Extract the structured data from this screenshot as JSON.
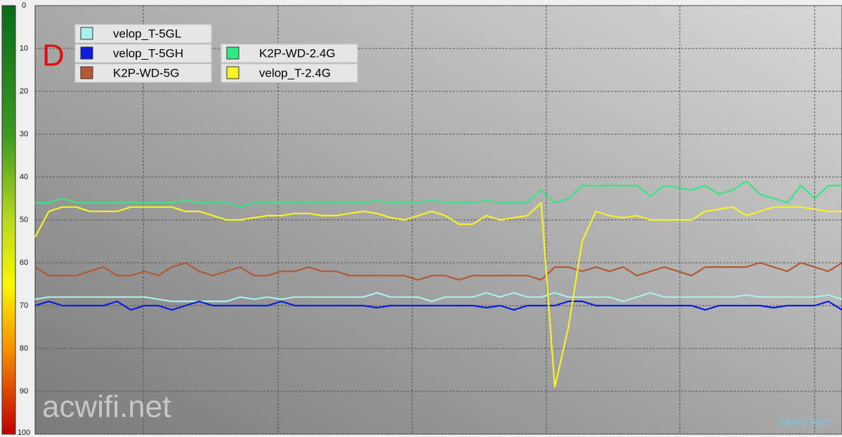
{
  "chart_data": {
    "type": "line",
    "ylim": [
      0,
      100
    ],
    "yticks": [
      0,
      10,
      20,
      30,
      40,
      50,
      60,
      70,
      80,
      90,
      100
    ],
    "y_inverted": true,
    "grid": true,
    "legend": "upper left",
    "annotations": {
      "panel": "D",
      "watermark": "acwifi.net",
      "corner_mark": "SMYZ.NET"
    },
    "series": [
      {
        "name": "velop_T-5GL",
        "color": "#a8f0ec",
        "values": [
          68.5,
          68,
          68,
          68,
          68,
          68,
          68,
          68,
          68,
          68.5,
          69,
          69,
          69,
          69,
          69,
          68,
          68.5,
          68,
          68.5,
          68,
          68,
          68,
          68,
          68,
          68,
          67,
          68,
          68,
          68,
          69,
          68,
          68,
          68,
          67,
          68,
          67,
          68,
          68,
          67,
          68,
          68,
          68,
          68,
          69,
          68,
          67,
          68,
          68,
          68,
          68,
          68,
          68,
          67.5,
          68,
          68,
          68,
          68,
          68,
          67.5,
          68.5
        ]
      },
      {
        "name": "velop_T-5GH",
        "color": "#0a1edc",
        "values": [
          70,
          69,
          70,
          70,
          70,
          70,
          69,
          71,
          70,
          70,
          71,
          70,
          69,
          70,
          70,
          70,
          70,
          70,
          69,
          70,
          70,
          70,
          70,
          70,
          70,
          70.5,
          70,
          70,
          70,
          70,
          70,
          70,
          70,
          70.5,
          70,
          71,
          70,
          70,
          70,
          69,
          69,
          70,
          70,
          70,
          70,
          70,
          70,
          70,
          70,
          71,
          70,
          70,
          70,
          70,
          70.5,
          70,
          70,
          70,
          69,
          71
        ]
      },
      {
        "name": "K2P-WD-5G",
        "color": "#b15a33",
        "values": [
          61,
          63,
          63,
          63,
          62,
          61,
          63,
          63,
          62,
          63,
          61,
          60,
          62,
          63,
          62,
          61,
          63,
          63,
          62,
          62,
          61,
          62,
          62,
          63,
          63,
          63,
          63,
          63,
          64,
          63,
          63,
          64,
          63,
          63,
          63,
          63,
          63,
          64,
          61,
          61,
          62,
          61,
          62,
          61,
          63,
          62,
          61,
          62,
          63,
          61,
          61,
          61,
          61,
          60,
          61,
          62,
          60,
          61,
          62,
          60
        ]
      },
      {
        "name": "K2P-WD-2.4G",
        "color": "#33e882",
        "values": [
          46,
          46,
          45,
          46,
          46,
          46,
          46,
          46,
          46,
          46,
          46,
          45.5,
          46,
          46,
          46,
          47,
          46,
          46,
          46,
          46,
          46,
          46,
          46,
          46,
          46,
          45.5,
          46,
          46,
          46,
          45.5,
          46,
          46,
          46,
          45.5,
          46,
          46,
          46,
          43,
          46,
          45,
          42,
          42,
          42,
          42,
          42,
          44.5,
          42,
          42.5,
          43,
          42,
          44,
          43,
          41,
          44,
          45,
          46,
          42,
          45,
          42,
          42
        ]
      },
      {
        "name": "velop_T-2.4G",
        "color": "#f6f22a",
        "values": [
          54,
          48,
          47,
          47,
          48,
          48,
          48,
          47,
          47,
          47,
          47,
          48,
          48,
          49,
          50,
          50,
          49.5,
          49,
          49,
          48.5,
          48.5,
          49,
          49,
          48.5,
          48,
          48.5,
          49.5,
          50,
          49,
          48,
          49,
          51,
          51,
          49,
          50,
          49.5,
          49,
          46,
          89,
          75,
          55,
          48,
          49,
          49.5,
          49,
          50,
          50,
          50,
          50,
          48,
          47.5,
          47,
          49,
          48,
          47,
          47,
          47,
          47.5,
          48,
          48
        ]
      }
    ]
  }
}
